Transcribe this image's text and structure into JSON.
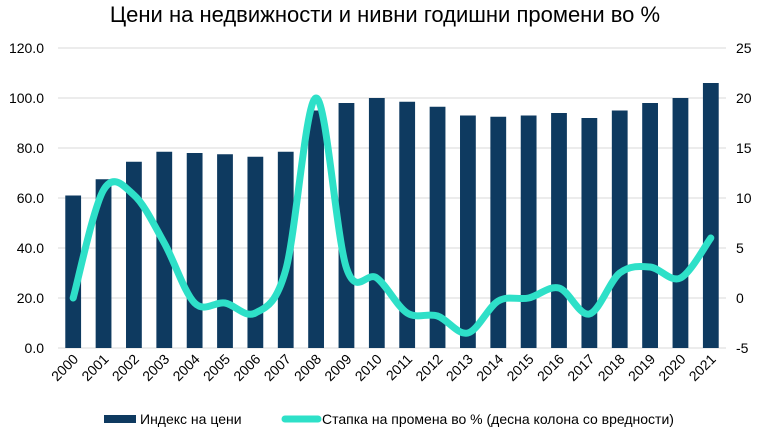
{
  "chart_data": {
    "type": "bar",
    "title": "Цени на недвижности и нивни годишни промени во %",
    "categories": [
      "2000",
      "2001",
      "2002",
      "2003",
      "2004",
      "2005",
      "2006",
      "2007",
      "2008",
      "2009",
      "2010",
      "2011",
      "2012",
      "2013",
      "2014",
      "2015",
      "2016",
      "2017",
      "2018",
      "2019",
      "2020",
      "2021"
    ],
    "series": [
      {
        "name": "Индекс на цени",
        "type": "bar",
        "axis": "left",
        "color": "#0e3a60",
        "values": [
          61.0,
          67.5,
          74.5,
          78.5,
          78.0,
          77.5,
          76.5,
          78.5,
          95.0,
          98.0,
          100.0,
          98.5,
          96.5,
          93.0,
          92.5,
          93.0,
          94.0,
          92.0,
          95.0,
          98.0,
          100.0,
          106.0
        ]
      },
      {
        "name": "Стапка на промена во % (десна колона со вредности)",
        "type": "line",
        "axis": "right",
        "color": "#2ee0c8",
        "values": [
          0.0,
          10.8,
          10.3,
          5.5,
          -0.5,
          -0.5,
          -1.5,
          2.8,
          20.0,
          3.0,
          2.0,
          -1.5,
          -1.8,
          -3.5,
          -0.3,
          0.0,
          1.0,
          -1.6,
          2.5,
          3.1,
          2.0,
          6.0
        ]
      }
    ],
    "left_axis": {
      "ticks": [
        "0.0",
        "20.0",
        "40.0",
        "60.0",
        "80.0",
        "100.0",
        "120.0"
      ],
      "ylim": [
        0,
        120
      ]
    },
    "right_axis": {
      "ticks": [
        "-5",
        "0",
        "5",
        "10",
        "15",
        "20",
        "25"
      ],
      "ylim": [
        -5,
        25
      ]
    },
    "grid": true,
    "legend_position": "bottom"
  }
}
